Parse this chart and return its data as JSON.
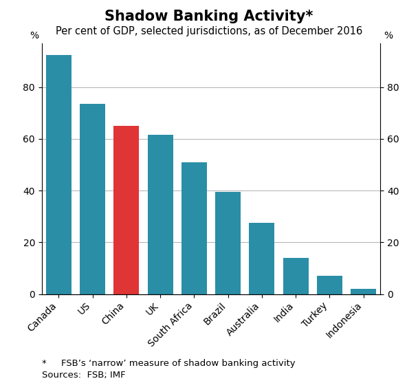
{
  "title": "Shadow Banking Activity*",
  "subtitle": "Per cent of GDP, selected jurisdictions, as of December 2016",
  "categories": [
    "Canada",
    "US",
    "China",
    "UK",
    "South Africa",
    "Brazil",
    "Australia",
    "India",
    "Turkey",
    "Indonesia"
  ],
  "values": [
    92.5,
    73.5,
    65.0,
    61.5,
    51.0,
    39.5,
    27.5,
    14.0,
    7.0,
    2.0
  ],
  "bar_colors": [
    "#2a8ea6",
    "#2a8ea6",
    "#e03535",
    "#2a8ea6",
    "#2a8ea6",
    "#2a8ea6",
    "#2a8ea6",
    "#2a8ea6",
    "#2a8ea6",
    "#2a8ea6"
  ],
  "ylim": [
    0,
    97
  ],
  "yticks": [
    0,
    20,
    40,
    60,
    80
  ],
  "ylabel_left": "%",
  "ylabel_right": "%",
  "footnote_star": "*     FSB’s ‘narrow’ measure of shadow banking activity",
  "footnote_sources": "Sources:  FSB; IMF",
  "background_color": "#ffffff",
  "grid_color": "#b0b0b0",
  "title_fontsize": 15,
  "subtitle_fontsize": 10.5,
  "tick_fontsize": 10,
  "footnote_fontsize": 9.5,
  "bar_width": 0.75
}
